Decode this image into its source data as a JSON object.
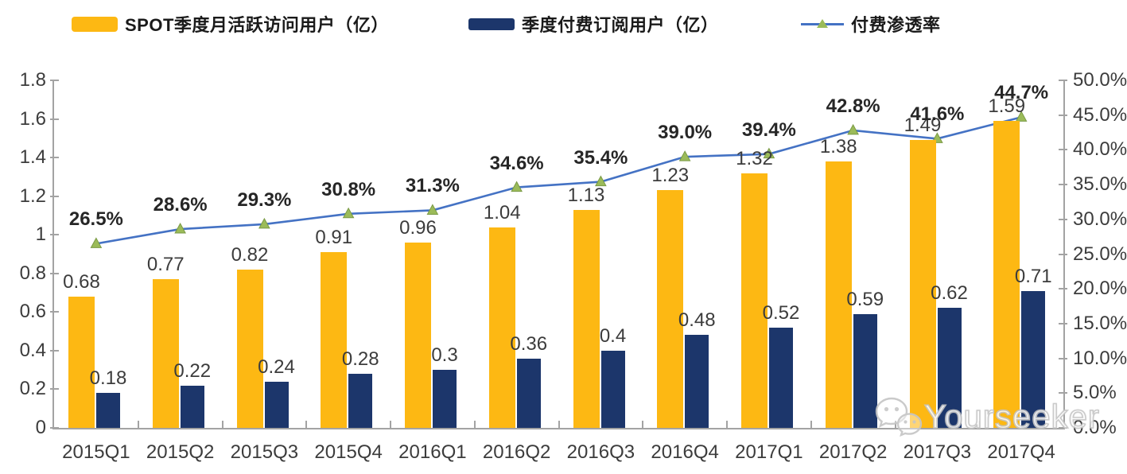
{
  "legend": [
    {
      "label": "SPOT季度月活跃访问用户（亿）",
      "type": "bar",
      "color": "#FDB813"
    },
    {
      "label": "季度付费订阅用户（亿）",
      "type": "bar",
      "color": "#1C366B"
    },
    {
      "label": "付费渗透率",
      "type": "line",
      "color": "#4472C4",
      "marker_color": "#9BBB59"
    }
  ],
  "chart_data": {
    "type": "combo",
    "grid": false,
    "legend_position": "top",
    "categories": [
      "2015Q1",
      "2015Q2",
      "2015Q3",
      "2015Q4",
      "2016Q1",
      "2016Q2",
      "2016Q3",
      "2016Q4",
      "2017Q1",
      "2017Q2",
      "2017Q3",
      "2017Q4"
    ],
    "series": [
      {
        "name": "SPOT季度月活跃访问用户（亿）",
        "type": "bar",
        "axis": "left",
        "color": "#FDB813",
        "values": [
          0.68,
          0.77,
          0.82,
          0.91,
          0.96,
          1.04,
          1.13,
          1.23,
          1.32,
          1.38,
          1.49,
          1.59
        ],
        "labels": [
          "0.68",
          "0.77",
          "0.82",
          "0.91",
          "0.96",
          "1.04",
          "1.13",
          "1.23",
          "1.32",
          "1.38",
          "1.49",
          "1.59"
        ]
      },
      {
        "name": "季度付费订阅用户（亿）",
        "type": "bar",
        "axis": "left",
        "color": "#1C366B",
        "values": [
          0.18,
          0.22,
          0.24,
          0.28,
          0.3,
          0.36,
          0.4,
          0.48,
          0.52,
          0.59,
          0.62,
          0.71
        ],
        "labels": [
          "0.18",
          "0.22",
          "0.24",
          "0.28",
          "0.3",
          "0.36",
          "0.4",
          "0.48",
          "0.52",
          "0.59",
          "0.62",
          "0.71"
        ]
      },
      {
        "name": "付费渗透率",
        "type": "line",
        "axis": "right",
        "color": "#4472C4",
        "marker": "triangle",
        "marker_color": "#9BBB59",
        "values": [
          26.5,
          28.6,
          29.3,
          30.8,
          31.3,
          34.6,
          35.4,
          39.0,
          39.4,
          42.8,
          41.6,
          44.7
        ],
        "labels": [
          "26.5%",
          "28.6%",
          "29.3%",
          "30.8%",
          "31.3%",
          "34.6%",
          "35.4%",
          "39.0%",
          "39.4%",
          "42.8%",
          "41.6%",
          "44.7%"
        ]
      }
    ],
    "left_axis": {
      "min": 0,
      "max": 1.8,
      "step": 0.2,
      "ticks": [
        "1.8",
        "1.6",
        "1.4",
        "1.2",
        "1",
        "0.8",
        "0.6",
        "0.4",
        "0.2",
        "0"
      ]
    },
    "right_axis": {
      "min": 0,
      "max": 50,
      "step": 5,
      "ticks": [
        "50.0%",
        "45.0%",
        "40.0%",
        "35.0%",
        "30.0%",
        "25.0%",
        "20.0%",
        "15.0%",
        "10.0%",
        "5.0%",
        "0.0%"
      ]
    }
  },
  "watermark": {
    "text": "Yourseeker",
    "icon": "wechat-icon"
  }
}
